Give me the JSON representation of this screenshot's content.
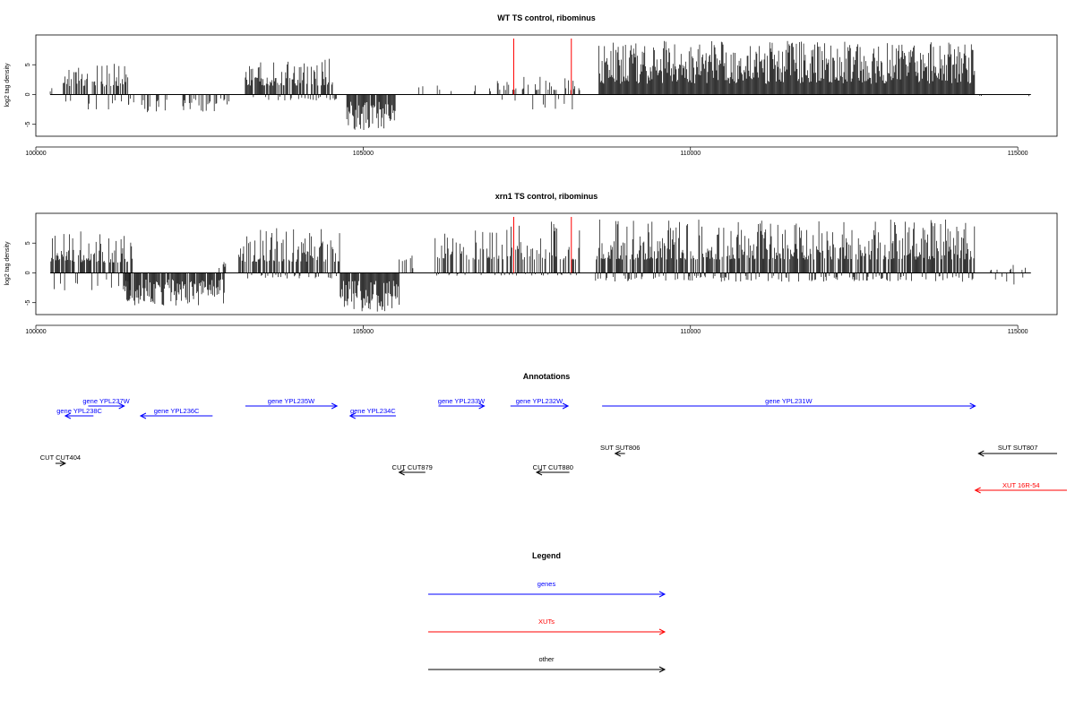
{
  "chart_data": [
    {
      "type": "bar",
      "title": "WT TS control, ribominus",
      "ylabel": "log2 tag density",
      "xlim": [
        100000,
        115600
      ],
      "ylim": [
        -7,
        10
      ],
      "xticks": [
        100000,
        105000,
        110000,
        115000
      ],
      "yticks": [
        -5,
        0,
        5
      ],
      "marker_color": "#ff0000",
      "markers": [
        107300,
        108180
      ],
      "regions": [
        {
          "start": 100220,
          "end": 100260,
          "max": 1.5,
          "min": 0,
          "density": 0.3,
          "seed": 11
        },
        {
          "start": 100420,
          "end": 101420,
          "max": 5.5,
          "min": -2.5,
          "density": 0.7,
          "seed": 12
        },
        {
          "start": 101420,
          "end": 103000,
          "max": 0,
          "min": -3,
          "density": 0.25,
          "seed": 13
        },
        {
          "start": 103200,
          "end": 104600,
          "max": 6,
          "min": -1,
          "density": 0.8,
          "seed": 14
        },
        {
          "start": 104750,
          "end": 105500,
          "max": 0,
          "min": -6,
          "density": 0.9,
          "seed": 15
        },
        {
          "start": 105800,
          "end": 106950,
          "max": 2,
          "min": 0,
          "density": 0.1,
          "seed": 16
        },
        {
          "start": 107050,
          "end": 108320,
          "max": 3,
          "min": -2.5,
          "density": 0.35,
          "seed": 17
        },
        {
          "start": 108600,
          "end": 114350,
          "max": 9,
          "min": 0,
          "density": 1.0,
          "seed": 18
        },
        {
          "start": 114420,
          "end": 114460,
          "max": 0,
          "min": -1,
          "density": 0.4,
          "seed": 19
        },
        {
          "start": 115170,
          "end": 115200,
          "max": 0,
          "min": -1,
          "density": 0.4,
          "seed": 20
        }
      ]
    },
    {
      "type": "bar",
      "title": "xrn1 TS control, ribominus",
      "ylabel": "log2 tag density",
      "xlim": [
        100000,
        115600
      ],
      "ylim": [
        -7,
        10
      ],
      "xticks": [
        100000,
        105000,
        110000,
        115000
      ],
      "yticks": [
        -5,
        0,
        5
      ],
      "marker_color": "#ff0000",
      "markers": [
        107300,
        108180
      ],
      "regions": [
        {
          "start": 100230,
          "end": 101480,
          "max": 7,
          "min": -3,
          "density": 0.8,
          "seed": 21
        },
        {
          "start": 101350,
          "end": 102880,
          "max": 0,
          "min": -5.5,
          "density": 0.9,
          "seed": 22
        },
        {
          "start": 102800,
          "end": 102900,
          "max": 2,
          "min": 0,
          "density": 0.5,
          "seed": 23
        },
        {
          "start": 103100,
          "end": 104650,
          "max": 7.5,
          "min": -1,
          "density": 0.85,
          "seed": 24
        },
        {
          "start": 104650,
          "end": 105550,
          "max": 0,
          "min": -6.5,
          "density": 0.95,
          "seed": 25
        },
        {
          "start": 105550,
          "end": 105800,
          "max": 3.5,
          "min": 0,
          "density": 0.4,
          "seed": 26
        },
        {
          "start": 106100,
          "end": 108320,
          "max": 9,
          "min": -0.5,
          "density": 0.6,
          "seed": 27
        },
        {
          "start": 108550,
          "end": 114350,
          "max": 9,
          "min": -1.5,
          "density": 1.0,
          "seed": 28
        },
        {
          "start": 114400,
          "end": 115200,
          "max": 1.5,
          "min": -2,
          "density": 0.2,
          "seed": 29
        }
      ]
    }
  ],
  "annotations": {
    "title": "Annotations",
    "colors": {
      "gene": "#0000ff",
      "xut": "#ff0000",
      "other": "#000000"
    },
    "features": [
      {
        "label": "gene YPL237W",
        "kind": "gene",
        "start": 100800,
        "end": 101350,
        "strand": "+",
        "row": 0
      },
      {
        "label": "gene YPL238C",
        "kind": "gene",
        "start": 100450,
        "end": 100880,
        "strand": "-",
        "row": 1
      },
      {
        "label": "gene YPL236C",
        "kind": "gene",
        "start": 101600,
        "end": 102700,
        "strand": "-",
        "row": 1
      },
      {
        "label": "gene YPL235W",
        "kind": "gene",
        "start": 103200,
        "end": 104600,
        "strand": "+",
        "row": 0
      },
      {
        "label": "gene YPL234C",
        "kind": "gene",
        "start": 104800,
        "end": 105500,
        "strand": "-",
        "row": 1
      },
      {
        "label": "gene YPL233W",
        "kind": "gene",
        "start": 106150,
        "end": 106850,
        "strand": "+",
        "row": 0
      },
      {
        "label": "gene YPL232W",
        "kind": "gene",
        "start": 107250,
        "end": 108130,
        "strand": "+",
        "row": 0
      },
      {
        "label": "gene YPL231W",
        "kind": "gene",
        "start": 108650,
        "end": 114350,
        "strand": "+",
        "row": 0
      },
      {
        "label": "SUT SUT806",
        "kind": "other",
        "start": 108850,
        "end": 109000,
        "strand": "-",
        "row": 3
      },
      {
        "label": "SUT SUT807",
        "kind": "other",
        "start": 114400,
        "end": 115600,
        "strand": "-",
        "row": 3
      },
      {
        "label": "CUT CUT404",
        "kind": "other",
        "start": 100300,
        "end": 100450,
        "strand": "+",
        "row": 4
      },
      {
        "label": "CUT CUT879",
        "kind": "other",
        "start": 105550,
        "end": 105950,
        "strand": "-",
        "row": 5
      },
      {
        "label": "CUT CUT880",
        "kind": "other",
        "start": 107650,
        "end": 108150,
        "strand": "-",
        "row": 5
      },
      {
        "label": "XUT 16R-54",
        "kind": "xut",
        "start": 114350,
        "end": 115750,
        "strand": "-",
        "row": 6
      }
    ]
  },
  "legend": {
    "title": "Legend",
    "items": [
      {
        "label": "genes",
        "color": "#0000ff"
      },
      {
        "label": "XUTs",
        "color": "#ff0000"
      },
      {
        "label": "other",
        "color": "#000000"
      }
    ]
  }
}
